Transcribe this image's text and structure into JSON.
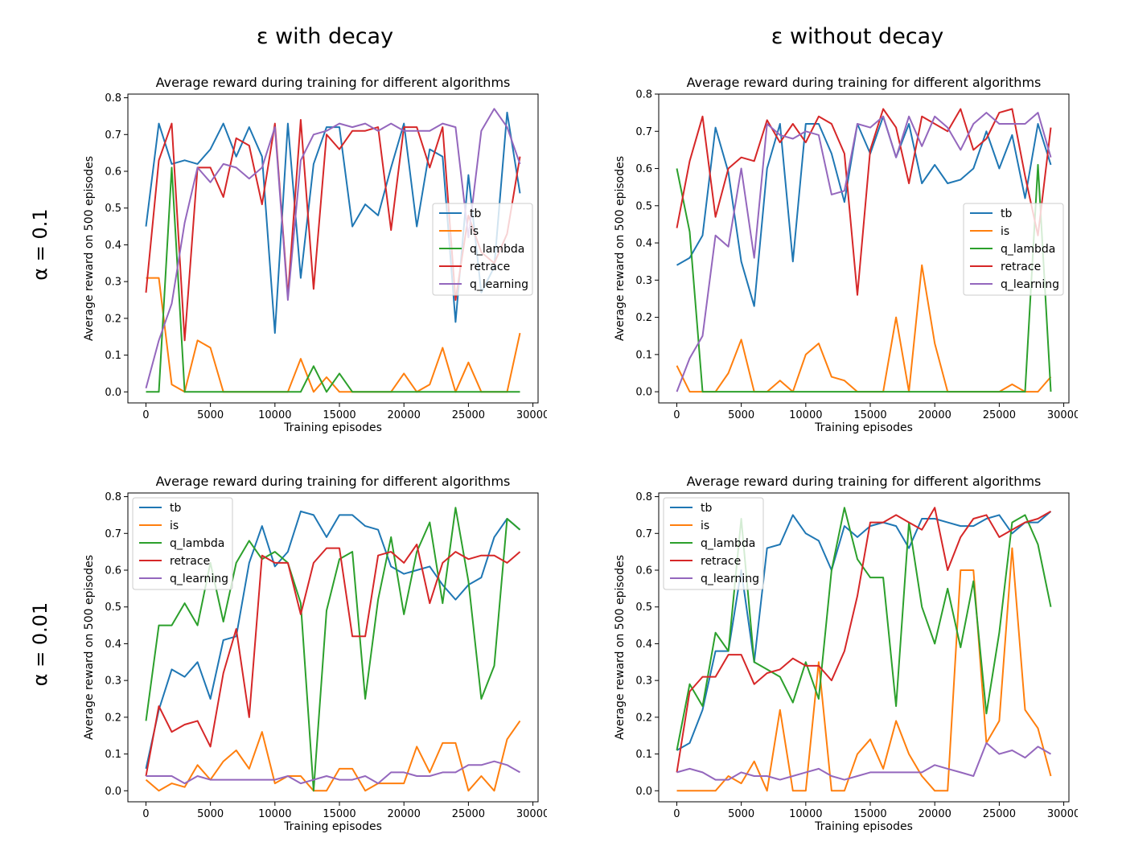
{
  "figure": {
    "col_headers": [
      "ε with decay",
      "ε without decay"
    ],
    "row_labels": [
      "α = 0.1",
      "α = 0.01"
    ],
    "colors": {
      "tb": "#1f77b4",
      "is": "#ff7f0e",
      "q_lambda": "#2ca02c",
      "retrace": "#d62728",
      "q_learning": "#9467bd"
    }
  },
  "chart_data": [
    {
      "type": "line",
      "title": "Average reward during training for different algorithms",
      "xlabel": "Training episodes",
      "ylabel": "Average reward on 500 episodes",
      "xlim": [
        -1400,
        30400
      ],
      "ylim": [
        -0.03,
        0.81
      ],
      "xticks": [
        0,
        5000,
        10000,
        15000,
        20000,
        25000,
        30000
      ],
      "yticks": [
        0.0,
        0.1,
        0.2,
        0.3,
        0.4,
        0.5,
        0.6,
        0.7,
        0.8
      ],
      "legend_position": "center-right",
      "x": [
        0,
        1000,
        2000,
        3000,
        4000,
        5000,
        6000,
        7000,
        8000,
        9000,
        10000,
        11000,
        12000,
        13000,
        14000,
        15000,
        16000,
        17000,
        18000,
        19000,
        20000,
        21000,
        22000,
        23000,
        24000,
        25000,
        26000,
        27000,
        28000,
        29000
      ],
      "series": [
        {
          "name": "tb",
          "values": [
            0.45,
            0.73,
            0.62,
            0.63,
            0.62,
            0.66,
            0.73,
            0.64,
            0.72,
            0.64,
            0.16,
            0.73,
            0.31,
            0.62,
            0.72,
            0.72,
            0.45,
            0.51,
            0.48,
            0.61,
            0.73,
            0.45,
            0.66,
            0.64,
            0.19,
            0.59,
            0.27,
            0.34,
            0.76,
            0.54
          ]
        },
        {
          "name": "is",
          "values": [
            0.31,
            0.31,
            0.02,
            0.0,
            0.14,
            0.12,
            0.0,
            0.0,
            0.0,
            0.0,
            0.0,
            0.0,
            0.09,
            0.0,
            0.04,
            0.0,
            0.0,
            0.0,
            0.0,
            0.0,
            0.05,
            0.0,
            0.02,
            0.12,
            0.0,
            0.08,
            0.0,
            0.0,
            0.0,
            0.16
          ]
        },
        {
          "name": "q_lambda",
          "values": [
            0.0,
            0.0,
            0.61,
            0.0,
            0.0,
            0.0,
            0.0,
            0.0,
            0.0,
            0.0,
            0.0,
            0.0,
            0.0,
            0.07,
            0.0,
            0.05,
            0.0,
            0.0,
            0.0,
            0.0,
            0.0,
            0.0,
            0.0,
            0.0,
            0.0,
            0.0,
            0.0,
            0.0,
            0.0,
            0.0
          ]
        },
        {
          "name": "retrace",
          "values": [
            0.27,
            0.63,
            0.73,
            0.14,
            0.61,
            0.61,
            0.53,
            0.69,
            0.67,
            0.51,
            0.73,
            0.26,
            0.74,
            0.28,
            0.7,
            0.66,
            0.71,
            0.71,
            0.72,
            0.44,
            0.72,
            0.72,
            0.61,
            0.72,
            0.25,
            0.48,
            0.38,
            0.35,
            0.43,
            0.64
          ]
        },
        {
          "name": "q_learning",
          "values": [
            0.01,
            0.14,
            0.24,
            0.46,
            0.61,
            0.57,
            0.62,
            0.61,
            0.58,
            0.61,
            0.72,
            0.25,
            0.63,
            0.7,
            0.71,
            0.73,
            0.72,
            0.73,
            0.71,
            0.73,
            0.71,
            0.71,
            0.71,
            0.73,
            0.72,
            0.42,
            0.71,
            0.77,
            0.72,
            0.62
          ]
        }
      ]
    },
    {
      "type": "line",
      "title": "Average reward during training for different algorithms",
      "xlabel": "Training episodes",
      "ylabel": "Average reward on 500 episodes",
      "xlim": [
        -1400,
        30400
      ],
      "ylim": [
        -0.03,
        0.8
      ],
      "xticks": [
        0,
        5000,
        10000,
        15000,
        20000,
        25000,
        30000
      ],
      "yticks": [
        0.0,
        0.1,
        0.2,
        0.3,
        0.4,
        0.5,
        0.6,
        0.7,
        0.8
      ],
      "legend_position": "center-right",
      "x": [
        0,
        1000,
        2000,
        3000,
        4000,
        5000,
        6000,
        7000,
        8000,
        9000,
        10000,
        11000,
        12000,
        13000,
        14000,
        15000,
        16000,
        17000,
        18000,
        19000,
        20000,
        21000,
        22000,
        23000,
        24000,
        25000,
        26000,
        27000,
        28000,
        29000
      ],
      "series": [
        {
          "name": "tb",
          "values": [
            0.34,
            0.36,
            0.42,
            0.71,
            0.59,
            0.35,
            0.23,
            0.6,
            0.72,
            0.35,
            0.72,
            0.72,
            0.64,
            0.51,
            0.72,
            0.64,
            0.74,
            0.63,
            0.72,
            0.56,
            0.61,
            0.56,
            0.57,
            0.6,
            0.7,
            0.6,
            0.69,
            0.52,
            0.72,
            0.61
          ]
        },
        {
          "name": "is",
          "values": [
            0.07,
            0.0,
            0.0,
            0.0,
            0.05,
            0.14,
            0.0,
            0.0,
            0.03,
            0.0,
            0.1,
            0.13,
            0.04,
            0.03,
            0.0,
            0.0,
            0.0,
            0.2,
            0.0,
            0.34,
            0.13,
            0.0,
            0.0,
            0.0,
            0.0,
            0.0,
            0.02,
            0.0,
            0.0,
            0.04
          ]
        },
        {
          "name": "q_lambda",
          "values": [
            0.6,
            0.43,
            0.0,
            0.0,
            0.0,
            0.0,
            0.0,
            0.0,
            0.0,
            0.0,
            0.0,
            0.0,
            0.0,
            0.0,
            0.0,
            0.0,
            0.0,
            0.0,
            0.0,
            0.0,
            0.0,
            0.0,
            0.0,
            0.0,
            0.0,
            0.0,
            0.0,
            0.0,
            0.61,
            0.0
          ]
        },
        {
          "name": "retrace",
          "values": [
            0.44,
            0.62,
            0.74,
            0.47,
            0.6,
            0.63,
            0.62,
            0.73,
            0.67,
            0.72,
            0.67,
            0.74,
            0.72,
            0.64,
            0.26,
            0.65,
            0.76,
            0.71,
            0.56,
            0.74,
            0.72,
            0.7,
            0.76,
            0.65,
            0.68,
            0.75,
            0.76,
            0.58,
            0.42,
            0.71
          ]
        },
        {
          "name": "q_learning",
          "values": [
            0.0,
            0.09,
            0.15,
            0.42,
            0.39,
            0.6,
            0.36,
            0.72,
            0.69,
            0.68,
            0.7,
            0.69,
            0.53,
            0.54,
            0.72,
            0.71,
            0.74,
            0.63,
            0.74,
            0.66,
            0.74,
            0.71,
            0.65,
            0.72,
            0.75,
            0.72,
            0.72,
            0.72,
            0.75,
            0.63
          ]
        }
      ]
    },
    {
      "type": "line",
      "title": "Average reward during training for different algorithms",
      "xlabel": "Training episodes",
      "ylabel": "Average reward on 500 episodes",
      "xlim": [
        -1400,
        30400
      ],
      "ylim": [
        -0.03,
        0.81
      ],
      "xticks": [
        0,
        5000,
        10000,
        15000,
        20000,
        25000,
        30000
      ],
      "yticks": [
        0.0,
        0.1,
        0.2,
        0.3,
        0.4,
        0.5,
        0.6,
        0.7,
        0.8
      ],
      "legend_position": "upper-left",
      "x": [
        0,
        1000,
        2000,
        3000,
        4000,
        5000,
        6000,
        7000,
        8000,
        9000,
        10000,
        11000,
        12000,
        13000,
        14000,
        15000,
        16000,
        17000,
        18000,
        19000,
        20000,
        21000,
        22000,
        23000,
        24000,
        25000,
        26000,
        27000,
        28000,
        29000
      ],
      "series": [
        {
          "name": "tb",
          "values": [
            0.06,
            0.22,
            0.33,
            0.31,
            0.35,
            0.25,
            0.41,
            0.42,
            0.62,
            0.72,
            0.61,
            0.65,
            0.76,
            0.75,
            0.69,
            0.75,
            0.75,
            0.72,
            0.71,
            0.61,
            0.59,
            0.6,
            0.61,
            0.56,
            0.52,
            0.56,
            0.58,
            0.69,
            0.74,
            0.71
          ]
        },
        {
          "name": "is",
          "values": [
            0.03,
            0.0,
            0.02,
            0.01,
            0.07,
            0.03,
            0.08,
            0.11,
            0.06,
            0.16,
            0.02,
            0.04,
            0.04,
            0.0,
            0.0,
            0.06,
            0.06,
            0.0,
            0.02,
            0.02,
            0.02,
            0.12,
            0.05,
            0.13,
            0.13,
            0.0,
            0.04,
            0.0,
            0.14,
            0.19
          ]
        },
        {
          "name": "q_lambda",
          "values": [
            0.19,
            0.45,
            0.45,
            0.51,
            0.45,
            0.62,
            0.46,
            0.62,
            0.68,
            0.63,
            0.65,
            0.62,
            0.51,
            0.0,
            0.49,
            0.63,
            0.65,
            0.25,
            0.52,
            0.69,
            0.48,
            0.65,
            0.73,
            0.51,
            0.77,
            0.57,
            0.25,
            0.34,
            0.74,
            0.71
          ]
        },
        {
          "name": "retrace",
          "values": [
            0.04,
            0.23,
            0.16,
            0.18,
            0.19,
            0.12,
            0.32,
            0.44,
            0.2,
            0.64,
            0.62,
            0.62,
            0.48,
            0.62,
            0.66,
            0.66,
            0.42,
            0.42,
            0.64,
            0.65,
            0.62,
            0.67,
            0.51,
            0.62,
            0.65,
            0.63,
            0.64,
            0.64,
            0.62,
            0.65
          ]
        },
        {
          "name": "q_learning",
          "values": [
            0.04,
            0.04,
            0.04,
            0.02,
            0.04,
            0.03,
            0.03,
            0.03,
            0.03,
            0.03,
            0.03,
            0.04,
            0.02,
            0.03,
            0.04,
            0.03,
            0.03,
            0.04,
            0.02,
            0.05,
            0.05,
            0.04,
            0.04,
            0.05,
            0.05,
            0.07,
            0.07,
            0.08,
            0.07,
            0.05
          ]
        }
      ]
    },
    {
      "type": "line",
      "title": "Average reward during training for different algorithms",
      "xlabel": "Training episodes",
      "ylabel": "Average reward on 500 episodes",
      "xlim": [
        -1400,
        30400
      ],
      "ylim": [
        -0.03,
        0.81
      ],
      "xticks": [
        0,
        5000,
        10000,
        15000,
        20000,
        25000,
        30000
      ],
      "yticks": [
        0.0,
        0.1,
        0.2,
        0.3,
        0.4,
        0.5,
        0.6,
        0.7,
        0.8
      ],
      "legend_position": "upper-left",
      "x": [
        0,
        1000,
        2000,
        3000,
        4000,
        5000,
        6000,
        7000,
        8000,
        9000,
        10000,
        11000,
        12000,
        13000,
        14000,
        15000,
        16000,
        17000,
        18000,
        19000,
        20000,
        21000,
        22000,
        23000,
        24000,
        25000,
        26000,
        27000,
        28000,
        29000
      ],
      "series": [
        {
          "name": "tb",
          "values": [
            0.11,
            0.13,
            0.22,
            0.38,
            0.38,
            0.6,
            0.35,
            0.66,
            0.67,
            0.75,
            0.7,
            0.68,
            0.6,
            0.72,
            0.69,
            0.72,
            0.73,
            0.72,
            0.66,
            0.74,
            0.74,
            0.73,
            0.72,
            0.72,
            0.74,
            0.75,
            0.7,
            0.73,
            0.73,
            0.76
          ]
        },
        {
          "name": "is",
          "values": [
            0.0,
            0.0,
            0.0,
            0.0,
            0.04,
            0.02,
            0.08,
            0.0,
            0.22,
            0.0,
            0.0,
            0.35,
            0.0,
            0.0,
            0.1,
            0.14,
            0.06,
            0.19,
            0.1,
            0.04,
            0.0,
            0.0,
            0.6,
            0.6,
            0.13,
            0.19,
            0.66,
            0.22,
            0.17,
            0.04
          ]
        },
        {
          "name": "q_lambda",
          "values": [
            0.11,
            0.29,
            0.23,
            0.43,
            0.38,
            0.74,
            0.35,
            0.33,
            0.31,
            0.24,
            0.35,
            0.25,
            0.6,
            0.77,
            0.63,
            0.58,
            0.58,
            0.23,
            0.73,
            0.5,
            0.4,
            0.55,
            0.39,
            0.57,
            0.21,
            0.43,
            0.73,
            0.75,
            0.67,
            0.5
          ]
        },
        {
          "name": "retrace",
          "values": [
            0.05,
            0.27,
            0.31,
            0.31,
            0.37,
            0.37,
            0.29,
            0.32,
            0.33,
            0.36,
            0.34,
            0.34,
            0.3,
            0.38,
            0.53,
            0.73,
            0.73,
            0.75,
            0.73,
            0.71,
            0.77,
            0.6,
            0.69,
            0.74,
            0.75,
            0.69,
            0.71,
            0.73,
            0.74,
            0.76
          ]
        },
        {
          "name": "q_learning",
          "values": [
            0.05,
            0.06,
            0.05,
            0.03,
            0.03,
            0.05,
            0.04,
            0.04,
            0.03,
            0.04,
            0.05,
            0.06,
            0.04,
            0.03,
            0.04,
            0.05,
            0.05,
            0.05,
            0.05,
            0.05,
            0.07,
            0.06,
            0.05,
            0.04,
            0.13,
            0.1,
            0.11,
            0.09,
            0.12,
            0.1
          ]
        }
      ]
    }
  ]
}
